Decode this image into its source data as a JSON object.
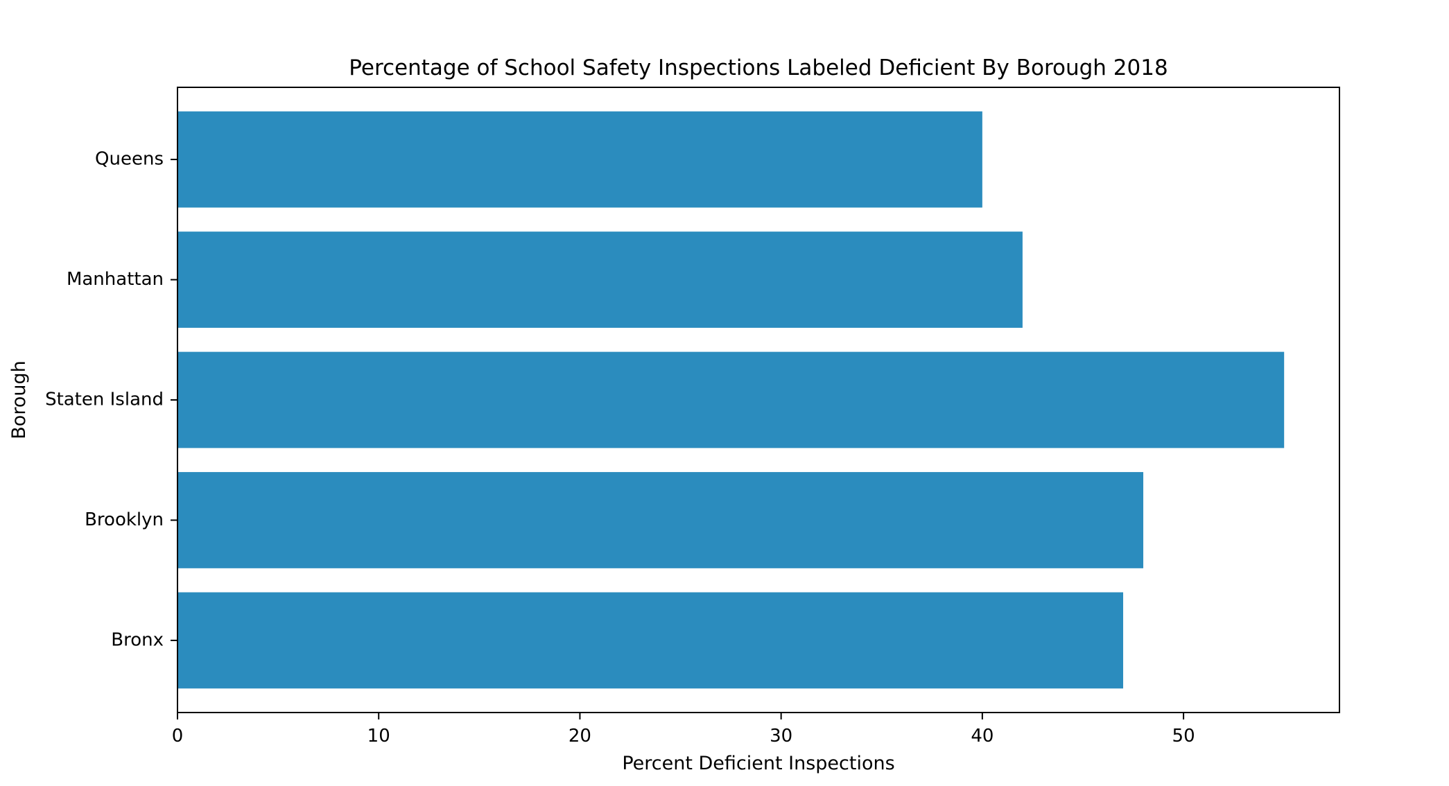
{
  "chart_data": {
    "type": "bar",
    "orientation": "horizontal",
    "title": "Percentage of School Safety Inspections Labeled Deficient By Borough 2018",
    "xlabel": "Percent Deficient Inspections",
    "ylabel": "Borough",
    "categories": [
      "Bronx",
      "Brooklyn",
      "Staten Island",
      "Manhattan",
      "Queens"
    ],
    "values": [
      47,
      48,
      55,
      42,
      40
    ],
    "xlim": [
      0,
      57.75
    ],
    "xticks": [
      0,
      10,
      20,
      30,
      40,
      50
    ],
    "grid": false,
    "legend": "none",
    "bar_color": "#2b8cbe"
  }
}
